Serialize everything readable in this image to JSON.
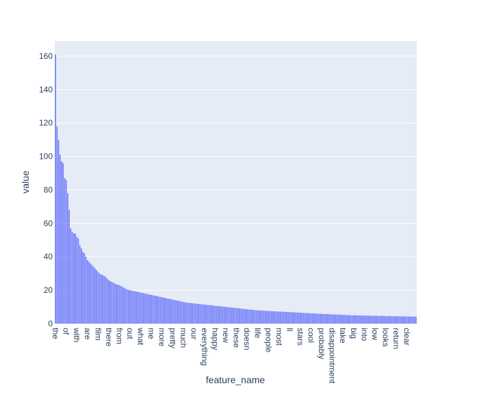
{
  "chart_data": {
    "type": "bar",
    "xlabel": "feature_name",
    "ylabel": "value",
    "ylim": [
      0,
      169
    ],
    "yticks": [
      0,
      20,
      40,
      60,
      80,
      100,
      120,
      140,
      160
    ],
    "grid": true,
    "colors": {
      "bar": "#636efa",
      "plot_bg": "#e5ecf6",
      "grid": "#ffffff",
      "text": "#2a3f5f"
    },
    "xtick_labels": [
      {
        "index": 0,
        "label": "the"
      },
      {
        "index": 7,
        "label": "of"
      },
      {
        "index": 14,
        "label": "with"
      },
      {
        "index": 21,
        "label": "are"
      },
      {
        "index": 28,
        "label": "film"
      },
      {
        "index": 35,
        "label": "there"
      },
      {
        "index": 42,
        "label": "from"
      },
      {
        "index": 49,
        "label": "out"
      },
      {
        "index": 56,
        "label": "what"
      },
      {
        "index": 63,
        "label": "me"
      },
      {
        "index": 70,
        "label": "more"
      },
      {
        "index": 77,
        "label": "pretty"
      },
      {
        "index": 84,
        "label": "much"
      },
      {
        "index": 91,
        "label": "our"
      },
      {
        "index": 98,
        "label": "everything"
      },
      {
        "index": 105,
        "label": "happy"
      },
      {
        "index": 112,
        "label": "new"
      },
      {
        "index": 119,
        "label": "these"
      },
      {
        "index": 126,
        "label": "doesn"
      },
      {
        "index": 133,
        "label": "life"
      },
      {
        "index": 140,
        "label": "people"
      },
      {
        "index": 147,
        "label": "most"
      },
      {
        "index": 154,
        "label": "ll"
      },
      {
        "index": 161,
        "label": "stars"
      },
      {
        "index": 168,
        "label": "cool"
      },
      {
        "index": 175,
        "label": "probably"
      },
      {
        "index": 182,
        "label": "disappointment"
      },
      {
        "index": 189,
        "label": "take"
      },
      {
        "index": 196,
        "label": "big"
      },
      {
        "index": 203,
        "label": "into"
      },
      {
        "index": 210,
        "label": "low"
      },
      {
        "index": 217,
        "label": "looks"
      },
      {
        "index": 224,
        "label": "return"
      },
      {
        "index": 231,
        "label": "clear"
      }
    ],
    "values": [
      161,
      118,
      110,
      101,
      97,
      96,
      87,
      86,
      78,
      68,
      57,
      55,
      54,
      54,
      52,
      51,
      47,
      45,
      43,
      42,
      40,
      38,
      37,
      36,
      35,
      34,
      33,
      32,
      31,
      30,
      29.5,
      29,
      28.5,
      28,
      27,
      26,
      25.5,
      25,
      24.5,
      24,
      23.5,
      23.3,
      23,
      22.5,
      22,
      21.5,
      21,
      20.5,
      20.2,
      20,
      19.8,
      19.6,
      19.4,
      19.2,
      19,
      18.8,
      18.6,
      18.4,
      18.2,
      18,
      17.8,
      17.6,
      17.4,
      17.2,
      17,
      16.8,
      16.6,
      16.4,
      16.2,
      16,
      15.8,
      15.6,
      15.4,
      15.2,
      15,
      14.8,
      14.6,
      14.4,
      14.2,
      14,
      13.8,
      13.6,
      13.4,
      13.2,
      13,
      12.8,
      12.6,
      12.5,
      12.4,
      12.3,
      12.2,
      12.1,
      12,
      11.9,
      11.8,
      11.7,
      11.6,
      11.5,
      11.4,
      11.3,
      11.2,
      11.1,
      11,
      10.9,
      10.8,
      10.7,
      10.6,
      10.5,
      10.4,
      10.3,
      10.2,
      10.1,
      10,
      9.9,
      9.8,
      9.7,
      9.6,
      9.5,
      9.4,
      9.3,
      9.2,
      9.1,
      9.0,
      8.9,
      8.8,
      8.7,
      8.6,
      8.5,
      8.4,
      8.3,
      8.2,
      8.1,
      8.0,
      7.95,
      7.9,
      7.85,
      7.8,
      7.75,
      7.7,
      7.65,
      7.6,
      7.55,
      7.5,
      7.45,
      7.4,
      7.35,
      7.3,
      7.25,
      7.2,
      7.15,
      7.1,
      7.05,
      7.0,
      6.95,
      6.9,
      6.85,
      6.8,
      6.75,
      6.7,
      6.65,
      6.6,
      6.55,
      6.5,
      6.45,
      6.4,
      6.35,
      6.3,
      6.25,
      6.2,
      6.15,
      6.1,
      6.05,
      6.0,
      5.95,
      5.9,
      5.85,
      5.8,
      5.76,
      5.72,
      5.68,
      5.64,
      5.6,
      5.56,
      5.52,
      5.48,
      5.44,
      5.4,
      5.36,
      5.32,
      5.28,
      5.24,
      5.2,
      5.16,
      5.12,
      5.08,
      5.04,
      5.0,
      4.98,
      4.96,
      4.94,
      4.92,
      4.9,
      4.88,
      4.86,
      4.84,
      4.82,
      4.8,
      4.78,
      4.76,
      4.74,
      4.72,
      4.7,
      4.68,
      4.66,
      4.64,
      4.62,
      4.6,
      4.58,
      4.56,
      4.54,
      4.52,
      4.5,
      4.48,
      4.46,
      4.44,
      4.42,
      4.4,
      4.38,
      4.36,
      4.34,
      4.32,
      4.3,
      4.28,
      4.26,
      4.24,
      4.22,
      4.2,
      4.18
    ]
  }
}
